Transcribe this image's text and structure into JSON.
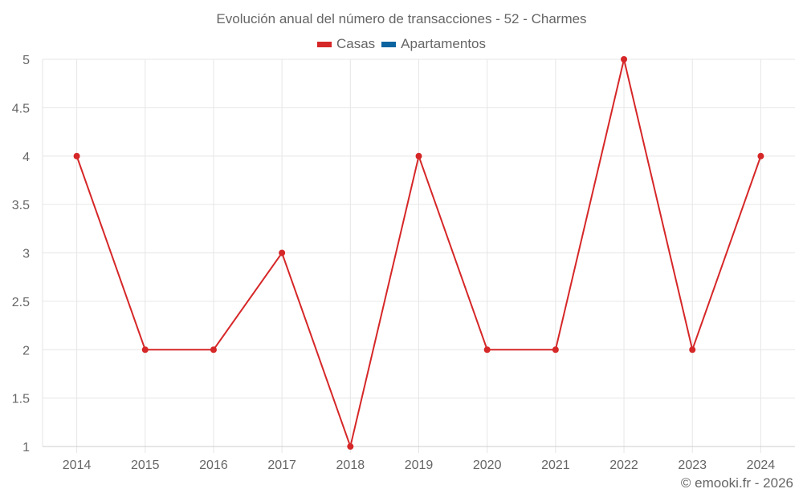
{
  "title": "Evolución anual del número de transacciones - 52 - Charmes",
  "legend": [
    {
      "label": "Casas",
      "color": "#d62728"
    },
    {
      "label": "Apartamentos",
      "color": "#0b64a0"
    }
  ],
  "credit": "© emooki.fr - 2026",
  "chart_data": {
    "type": "line",
    "title": "Evolución anual del número de transacciones - 52 - Charmes",
    "xlabel": "",
    "ylabel": "",
    "categories": [
      "2014",
      "2015",
      "2016",
      "2017",
      "2018",
      "2019",
      "2020",
      "2021",
      "2022",
      "2023",
      "2024"
    ],
    "series": [
      {
        "name": "Casas",
        "color": "#d62728",
        "values": [
          4,
          2,
          2,
          3,
          1,
          4,
          2,
          2,
          5,
          2,
          4
        ]
      },
      {
        "name": "Apartamentos",
        "color": "#0b64a0",
        "values": []
      }
    ],
    "ylim": [
      1,
      5
    ],
    "yticks": [
      "1",
      "1.5",
      "2",
      "2.5",
      "3",
      "3.5",
      "4",
      "4.5",
      "5"
    ],
    "grid": true,
    "legend_position": "top"
  }
}
